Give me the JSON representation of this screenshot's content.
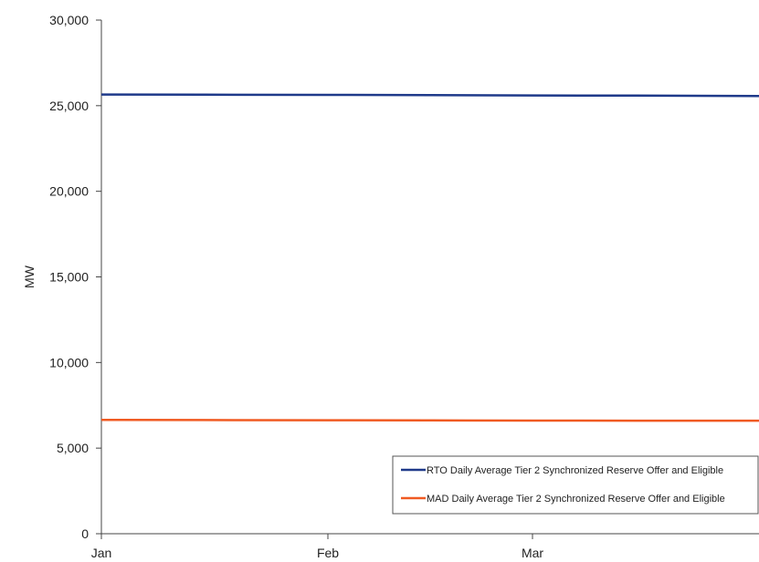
{
  "chart_data": {
    "type": "line",
    "title": "",
    "xlabel": "",
    "ylabel": "MW",
    "ylim": [
      0,
      30000
    ],
    "yticks": [
      0,
      5000,
      10000,
      15000,
      20000,
      25000,
      30000
    ],
    "ytick_labels": [
      "0",
      "5,000",
      "10,000",
      "15,000",
      "20,000",
      "25,000",
      "30,000"
    ],
    "xtick_labels": [
      "Jan",
      "Feb",
      "Mar"
    ],
    "x": [
      "2021-01-01",
      "2021-01-15",
      "2021-02-01",
      "2021-02-15",
      "2021-03-01",
      "2021-03-15",
      "2021-03-31"
    ],
    "grid": false,
    "legend_position": "bottom-right",
    "series": [
      {
        "name": "RTO Daily Average Tier 2 Synchronized Reserve Offer and Eligible",
        "color": "#1f3a8a",
        "values": [
          25650,
          25640,
          25630,
          25620,
          25600,
          25590,
          25560
        ]
      },
      {
        "name": "MAD Daily Average Tier 2 Synchronized Reserve Offer and Eligible",
        "color": "#f05a22",
        "values": [
          6650,
          6640,
          6630,
          6620,
          6610,
          6600,
          6600
        ]
      }
    ]
  }
}
